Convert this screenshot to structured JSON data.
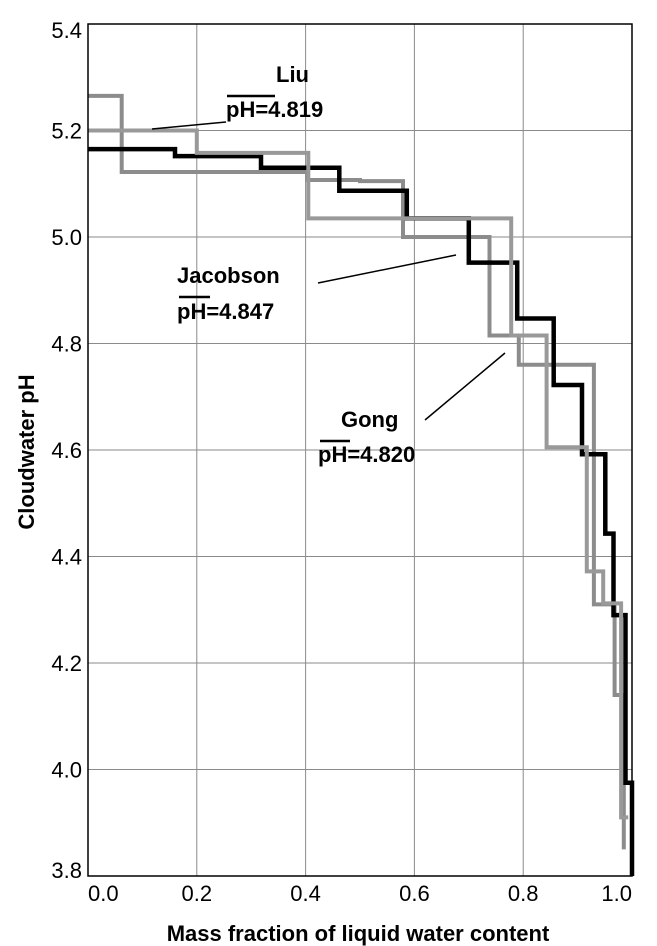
{
  "chart_data": {
    "type": "line",
    "xlabel": "Mass fraction of liquid water content",
    "ylabel": "Cloudwater pH",
    "xlim": [
      0.0,
      1.0
    ],
    "ylim": [
      3.8,
      5.4
    ],
    "grid": true,
    "x_ticks": [
      "0.0",
      "0.2",
      "0.4",
      "0.6",
      "0.8",
      "1.0"
    ],
    "y_ticks": [
      "3.8",
      "4.0",
      "4.2",
      "4.4",
      "4.6",
      "4.8",
      "5.0",
      "5.2",
      "5.4"
    ],
    "series": [
      {
        "name": "Liu",
        "color": "#8c8c8c",
        "x": [
          0.0,
          0.062,
          0.062,
          0.403,
          0.403,
          0.5,
          0.5,
          0.579,
          0.579,
          0.738,
          0.738,
          0.792,
          0.792,
          0.93,
          0.93,
          0.968,
          0.968,
          0.985,
          0.985
        ],
        "y": [
          5.265,
          5.265,
          5.122,
          5.122,
          5.107,
          5.107,
          5.105,
          5.105,
          5.0,
          5.0,
          4.815,
          4.815,
          4.76,
          4.76,
          4.31,
          4.31,
          4.14,
          4.14,
          3.85
        ]
      },
      {
        "name": "Jacobson",
        "color": "#000000",
        "x": [
          0.0,
          0.16,
          0.16,
          0.318,
          0.318,
          0.462,
          0.462,
          0.586,
          0.586,
          0.7,
          0.7,
          0.789,
          0.789,
          0.856,
          0.856,
          0.908,
          0.908,
          0.951,
          0.951,
          0.966,
          0.966,
          0.988,
          0.988,
          1.0,
          1.0
        ],
        "y": [
          5.165,
          5.165,
          5.152,
          5.152,
          5.13,
          5.13,
          5.087,
          5.087,
          5.035,
          5.035,
          4.952,
          4.952,
          4.847,
          4.847,
          4.722,
          4.722,
          4.592,
          4.592,
          4.443,
          4.443,
          4.29,
          4.29,
          3.975,
          3.975,
          3.8
        ]
      },
      {
        "name": "Gong",
        "color": "#999999",
        "x": [
          0.0,
          0.2,
          0.2,
          0.405,
          0.405,
          0.567,
          0.567,
          0.778,
          0.778,
          0.843,
          0.843,
          0.917,
          0.917,
          0.947,
          0.947,
          0.98,
          0.98,
          0.993
        ],
        "y": [
          5.2,
          5.2,
          5.158,
          5.158,
          5.035,
          5.035,
          5.035,
          5.035,
          4.815,
          4.815,
          4.605,
          4.605,
          4.372,
          4.372,
          4.312,
          4.312,
          3.91,
          3.91
        ]
      }
    ],
    "annotations": [
      {
        "name": "Liu",
        "mean_label": "pH=4.819"
      },
      {
        "name": "Jacobson",
        "mean_label": "pH=4.847"
      },
      {
        "name": "Gong",
        "mean_label": "pH=4.820"
      }
    ]
  }
}
